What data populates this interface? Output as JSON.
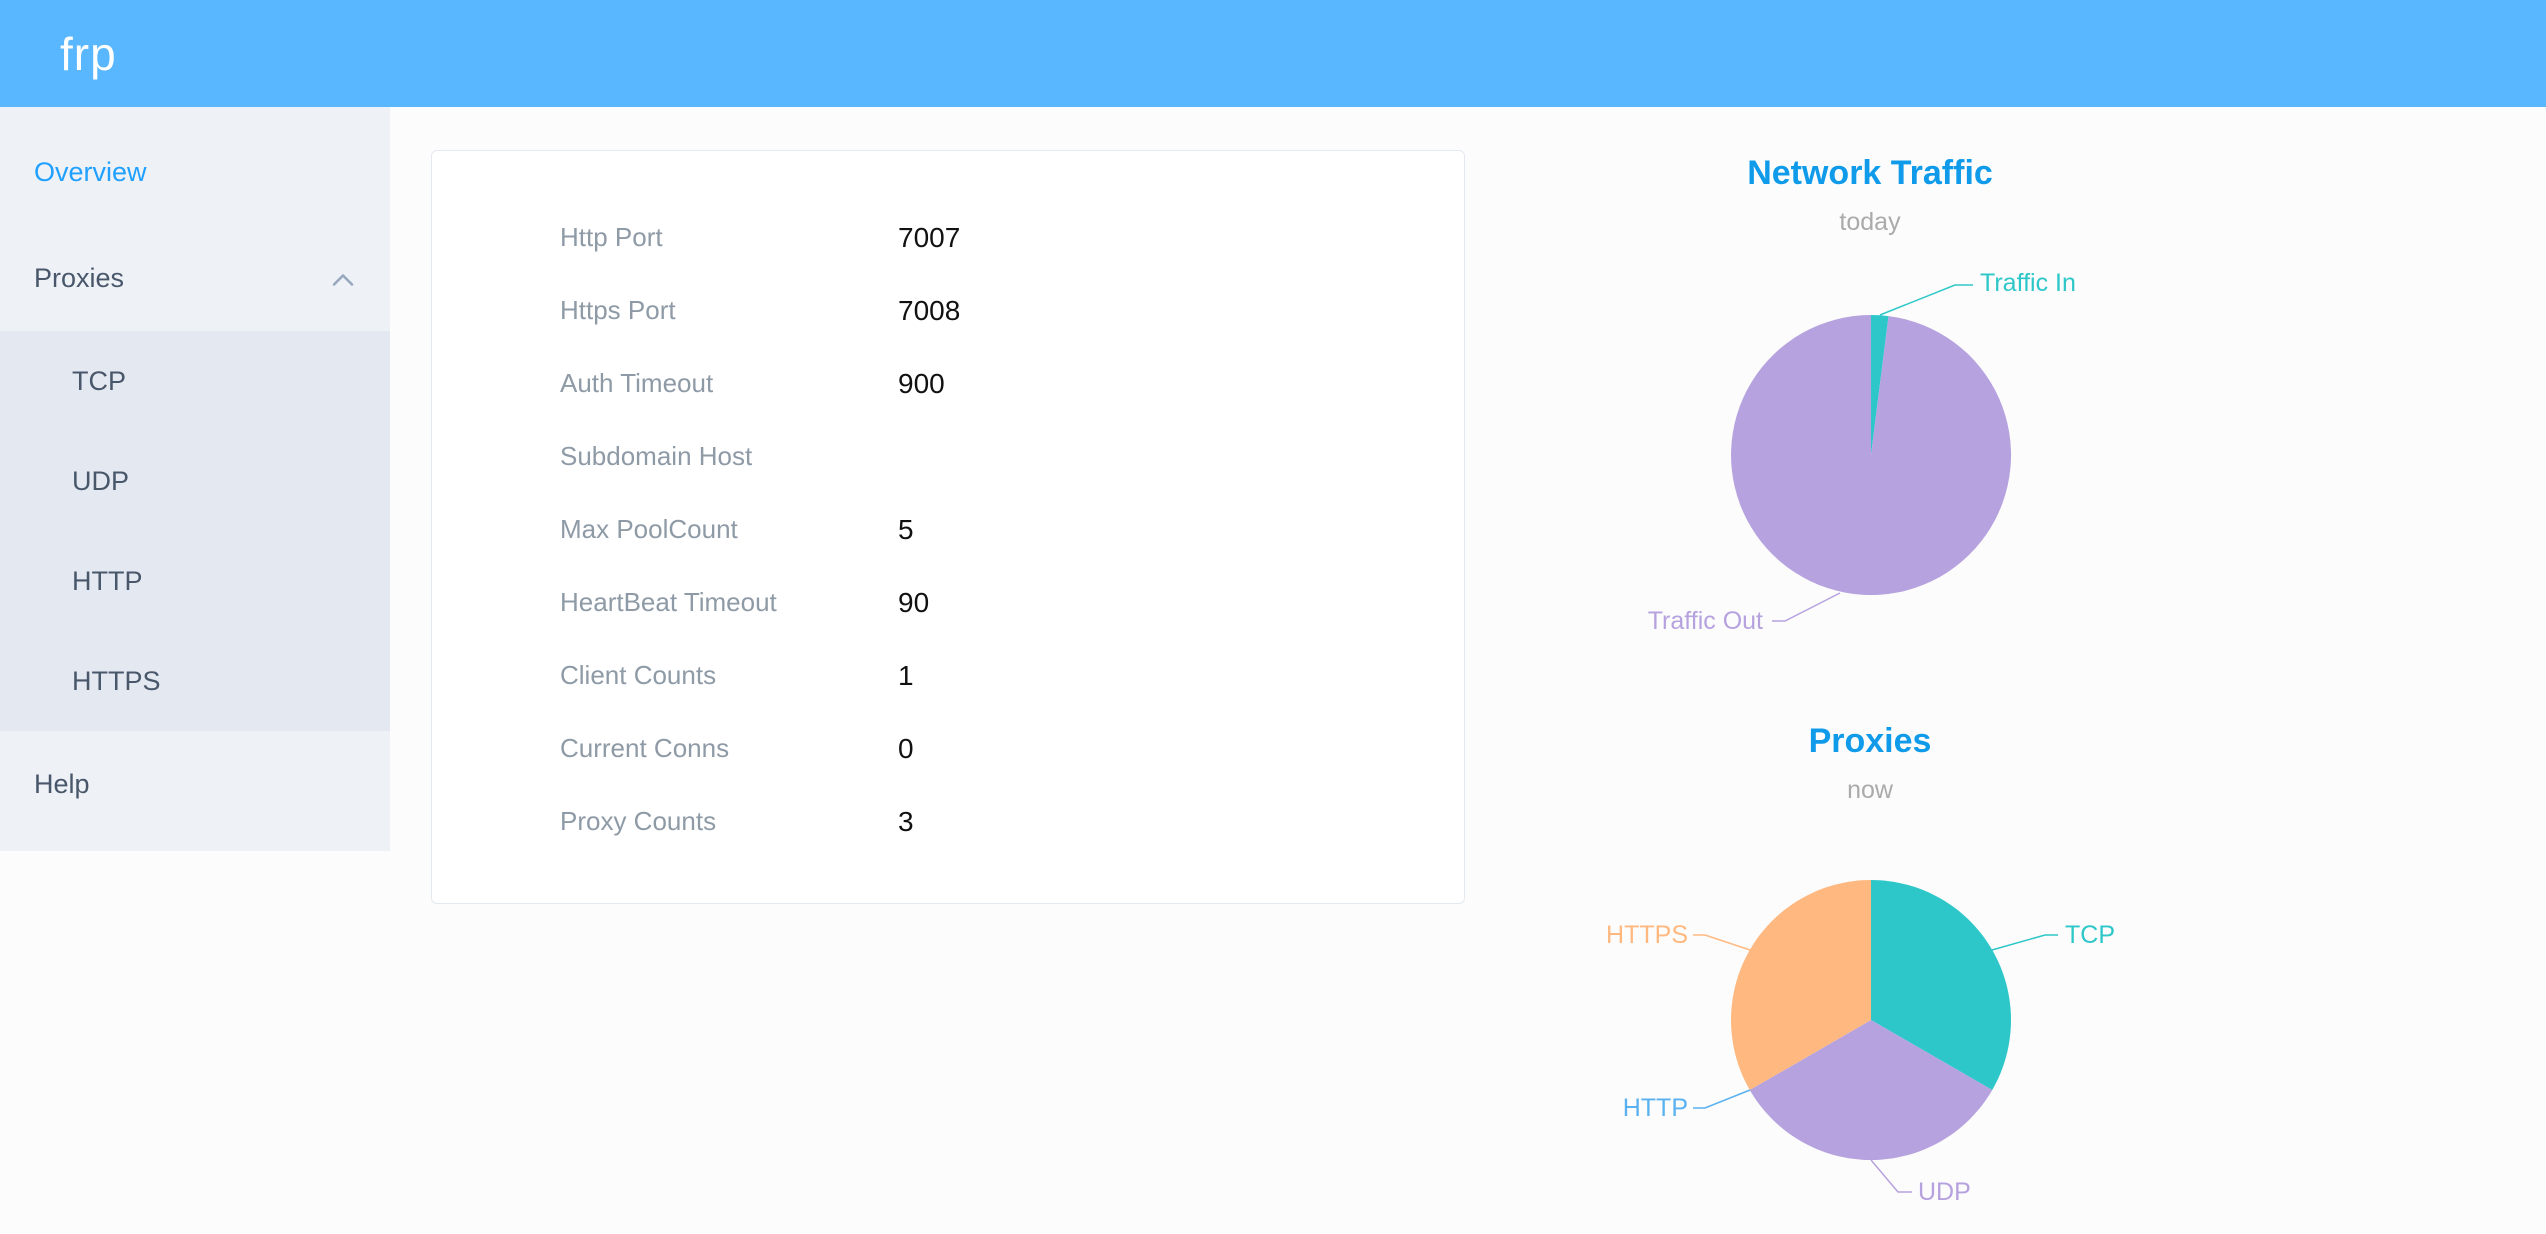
{
  "app": {
    "logo_text": "frp"
  },
  "sidebar": {
    "items": [
      {
        "label": "Overview",
        "active": true
      },
      {
        "label": "Proxies",
        "expanded": true,
        "children": [
          "TCP",
          "UDP",
          "HTTP",
          "HTTPS"
        ]
      },
      {
        "label": "Help",
        "active": false
      }
    ]
  },
  "server_info": {
    "rows": [
      {
        "label": "Http Port",
        "value": "7007"
      },
      {
        "label": "Https Port",
        "value": "7008"
      },
      {
        "label": "Auth Timeout",
        "value": "900"
      },
      {
        "label": "Subdomain Host",
        "value": ""
      },
      {
        "label": "Max PoolCount",
        "value": "5"
      },
      {
        "label": "HeartBeat Timeout",
        "value": "90"
      },
      {
        "label": "Client Counts",
        "value": "1"
      },
      {
        "label": "Current Conns",
        "value": "0"
      },
      {
        "label": "Proxy Counts",
        "value": "3"
      }
    ]
  },
  "chart_data": [
    {
      "type": "pie",
      "title": "Network Traffic",
      "subtitle": "today",
      "legend_position": "none",
      "series": [
        {
          "name": "Traffic In",
          "value": 2,
          "color": "#2ec7c9"
        },
        {
          "name": "Traffic Out",
          "value": 98,
          "color": "#b6a2de"
        }
      ]
    },
    {
      "type": "pie",
      "title": "Proxies",
      "subtitle": "now",
      "legend_position": "none",
      "series": [
        {
          "name": "TCP",
          "value": 1,
          "color": "#2ec7c9"
        },
        {
          "name": "UDP",
          "value": 1,
          "color": "#b6a2de"
        },
        {
          "name": "HTTP",
          "value": 0,
          "color": "#5ab1ef"
        },
        {
          "name": "HTTPS",
          "value": 1,
          "color": "#ffb980"
        }
      ]
    }
  ],
  "colors": {
    "header_bg": "#58b7ff",
    "accent": "#20a0ff",
    "chart_title": "#0f9bea",
    "sidebar_bg": "#eef1f6",
    "submenu_bg": "#e4e8f1",
    "menu_text": "#48576a",
    "label_text": "#8e9aa6",
    "value_text": "#111111",
    "subtitle_text": "#aaaaaa",
    "card_border": "#e4e9f0",
    "page_bg": "#fcfcfc"
  }
}
